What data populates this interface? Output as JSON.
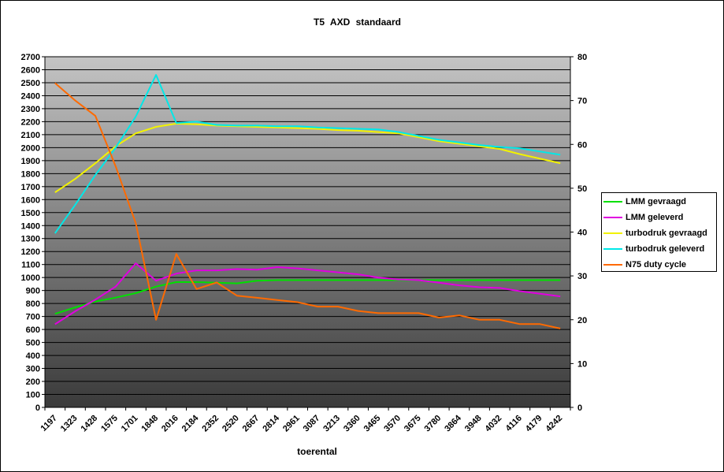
{
  "chart_data": {
    "type": "line",
    "title": "T5  AXD  standaard",
    "xlabel": "toerental",
    "ylabel": "",
    "y2label": "",
    "categories": [
      "1197",
      "1323",
      "1428",
      "1575",
      "1701",
      "1848",
      "2016",
      "2184",
      "2352",
      "2520",
      "2667",
      "2814",
      "2961",
      "3087",
      "3213",
      "3360",
      "3465",
      "3570",
      "3675",
      "3780",
      "3864",
      "3948",
      "4032",
      "4116",
      "4179",
      "4242"
    ],
    "ylim": [
      0,
      2700
    ],
    "ytick_step": 100,
    "y2lim": [
      0,
      80
    ],
    "y2tick_step": 10,
    "grid": true,
    "legend": "right",
    "series": [
      {
        "name": "LMM gevraagd",
        "axis": "left",
        "color": "#00e000",
        "values": [
          720,
          770,
          815,
          845,
          880,
          930,
          965,
          965,
          960,
          955,
          975,
          980,
          980,
          980,
          980,
          980,
          980,
          980,
          980,
          980,
          980,
          980,
          980,
          980,
          980,
          980
        ]
      },
      {
        "name": "LMM geleverd",
        "axis": "left",
        "color": "#e000e0",
        "values": [
          640,
          740,
          830,
          930,
          1110,
          975,
          1030,
          1055,
          1055,
          1065,
          1060,
          1080,
          1070,
          1055,
          1040,
          1025,
          1000,
          985,
          980,
          960,
          940,
          925,
          920,
          895,
          875,
          855
        ]
      },
      {
        "name": "turbodruk gevraagd",
        "axis": "left",
        "color": "#f2f200",
        "values": [
          1655,
          1760,
          1880,
          2010,
          2110,
          2160,
          2185,
          2180,
          2170,
          2165,
          2160,
          2155,
          2150,
          2145,
          2135,
          2130,
          2120,
          2110,
          2080,
          2050,
          2030,
          2010,
          1990,
          1950,
          1915,
          1880
        ]
      },
      {
        "name": "turbodruk geleverd",
        "axis": "left",
        "color": "#00e8e8",
        "values": [
          1340,
          1560,
          1790,
          2000,
          2240,
          2560,
          2190,
          2200,
          2175,
          2170,
          2170,
          2165,
          2165,
          2155,
          2150,
          2145,
          2140,
          2120,
          2090,
          2060,
          2040,
          2020,
          2005,
          1995,
          1970,
          1945
        ]
      },
      {
        "name": "N75 duty cycle",
        "axis": "right",
        "color": "#ff6a00",
        "values": [
          74,
          70,
          66.5,
          55,
          42,
          20,
          35,
          27,
          28.5,
          25.5,
          25,
          24.5,
          24,
          23,
          23,
          22,
          21.5,
          21.5,
          21.5,
          20.5,
          21,
          20,
          20,
          19,
          19,
          18
        ]
      }
    ]
  }
}
